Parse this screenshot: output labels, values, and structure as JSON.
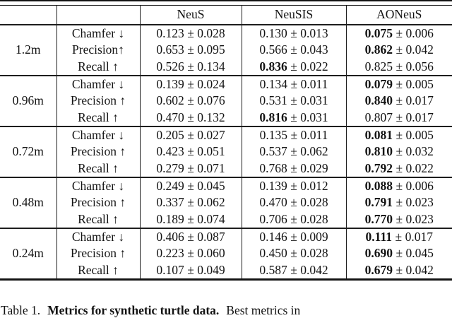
{
  "page": {
    "background": "#ffffff",
    "text_color": "#131313",
    "rule_color": "#1d1d1d"
  },
  "table": {
    "pm": "±",
    "columns": [
      "",
      "",
      "NeuS",
      "NeuSIS",
      "AONeuS"
    ],
    "groups": [
      {
        "label": "1.2m",
        "rows": [
          {
            "metric": "Chamfer ↓",
            "cells": [
              {
                "mean": "0.123",
                "err": "0.028",
                "bold": false
              },
              {
                "mean": "0.130",
                "err": "0.013",
                "bold": false
              },
              {
                "mean": "0.075",
                "err": "0.006",
                "bold": true
              }
            ]
          },
          {
            "metric": "Precision↑",
            "cells": [
              {
                "mean": "0.653",
                "err": "0.095",
                "bold": false
              },
              {
                "mean": "0.566",
                "err": "0.043",
                "bold": false
              },
              {
                "mean": "0.862",
                "err": "0.042",
                "bold": true
              }
            ]
          },
          {
            "metric": "Recall ↑",
            "cells": [
              {
                "mean": "0.526",
                "err": "0.134",
                "bold": false
              },
              {
                "mean": "0.836",
                "err": "0.022",
                "bold": true
              },
              {
                "mean": "0.825",
                "err": "0.056",
                "bold": false
              }
            ]
          }
        ]
      },
      {
        "label": "0.96m",
        "rows": [
          {
            "metric": "Chamfer ↓",
            "cells": [
              {
                "mean": "0.139",
                "err": "0.024",
                "bold": false
              },
              {
                "mean": "0.134",
                "err": "0.011",
                "bold": false
              },
              {
                "mean": "0.079",
                "err": "0.005",
                "bold": true
              }
            ]
          },
          {
            "metric": "Precision ↑",
            "cells": [
              {
                "mean": "0.602",
                "err": "0.076",
                "bold": false
              },
              {
                "mean": "0.531",
                "err": "0.031",
                "bold": false
              },
              {
                "mean": "0.840",
                "err": "0.017",
                "bold": true
              }
            ]
          },
          {
            "metric": "Recall ↑",
            "cells": [
              {
                "mean": "0.470",
                "err": "0.132",
                "bold": false
              },
              {
                "mean": "0.816",
                "err": "0.031",
                "bold": true
              },
              {
                "mean": "0.807",
                "err": "0.017",
                "bold": false
              }
            ]
          }
        ]
      },
      {
        "label": "0.72m",
        "rows": [
          {
            "metric": "Chamfer ↓",
            "cells": [
              {
                "mean": "0.205",
                "err": "0.027",
                "bold": false
              },
              {
                "mean": "0.135",
                "err": "0.011",
                "bold": false
              },
              {
                "mean": "0.081",
                "err": "0.005",
                "bold": true
              }
            ]
          },
          {
            "metric": "Precision ↑",
            "cells": [
              {
                "mean": "0.423",
                "err": "0.051",
                "bold": false
              },
              {
                "mean": "0.537",
                "err": "0.062",
                "bold": false
              },
              {
                "mean": "0.810",
                "err": "0.032",
                "bold": true
              }
            ]
          },
          {
            "metric": "Recall ↑",
            "cells": [
              {
                "mean": "0.279",
                "err": "0.071",
                "bold": false
              },
              {
                "mean": "0.768",
                "err": "0.029",
                "bold": false
              },
              {
                "mean": "0.792",
                "err": "0.022",
                "bold": true
              }
            ]
          }
        ]
      },
      {
        "label": "0.48m",
        "rows": [
          {
            "metric": "Chamfer ↓",
            "cells": [
              {
                "mean": "0.249",
                "err": "0.045",
                "bold": false
              },
              {
                "mean": "0.139",
                "err": "0.012",
                "bold": false
              },
              {
                "mean": "0.088",
                "err": "0.006",
                "bold": true
              }
            ]
          },
          {
            "metric": "Precision ↑",
            "cells": [
              {
                "mean": "0.337",
                "err": "0.062",
                "bold": false
              },
              {
                "mean": "0.470",
                "err": "0.028",
                "bold": false
              },
              {
                "mean": "0.791",
                "err": "0.023",
                "bold": true
              }
            ]
          },
          {
            "metric": "Recall ↑",
            "cells": [
              {
                "mean": "0.189",
                "err": "0.074",
                "bold": false
              },
              {
                "mean": "0.706",
                "err": "0.028",
                "bold": false
              },
              {
                "mean": "0.770",
                "err": "0.023",
                "bold": true
              }
            ]
          }
        ]
      },
      {
        "label": "0.24m",
        "rows": [
          {
            "metric": "Chamfer ↓",
            "cells": [
              {
                "mean": "0.406",
                "err": "0.087",
                "bold": false
              },
              {
                "mean": "0.146",
                "err": "0.009",
                "bold": false
              },
              {
                "mean": "0.111",
                "err": "0.017",
                "bold": true
              }
            ]
          },
          {
            "metric": "Precision ↑",
            "cells": [
              {
                "mean": "0.223",
                "err": "0.060",
                "bold": false
              },
              {
                "mean": "0.450",
                "err": "0.028",
                "bold": false
              },
              {
                "mean": "0.690",
                "err": "0.045",
                "bold": true
              }
            ]
          },
          {
            "metric": "Recall ↑",
            "cells": [
              {
                "mean": "0.107",
                "err": "0.049",
                "bold": false
              },
              {
                "mean": "0.587",
                "err": "0.042",
                "bold": false
              },
              {
                "mean": "0.679",
                "err": "0.042",
                "bold": true
              }
            ]
          }
        ]
      }
    ]
  },
  "caption": {
    "prefix": "Table 1.",
    "bold_title": "Metrics for synthetic turtle data.",
    "suffix": "Best metrics in"
  }
}
